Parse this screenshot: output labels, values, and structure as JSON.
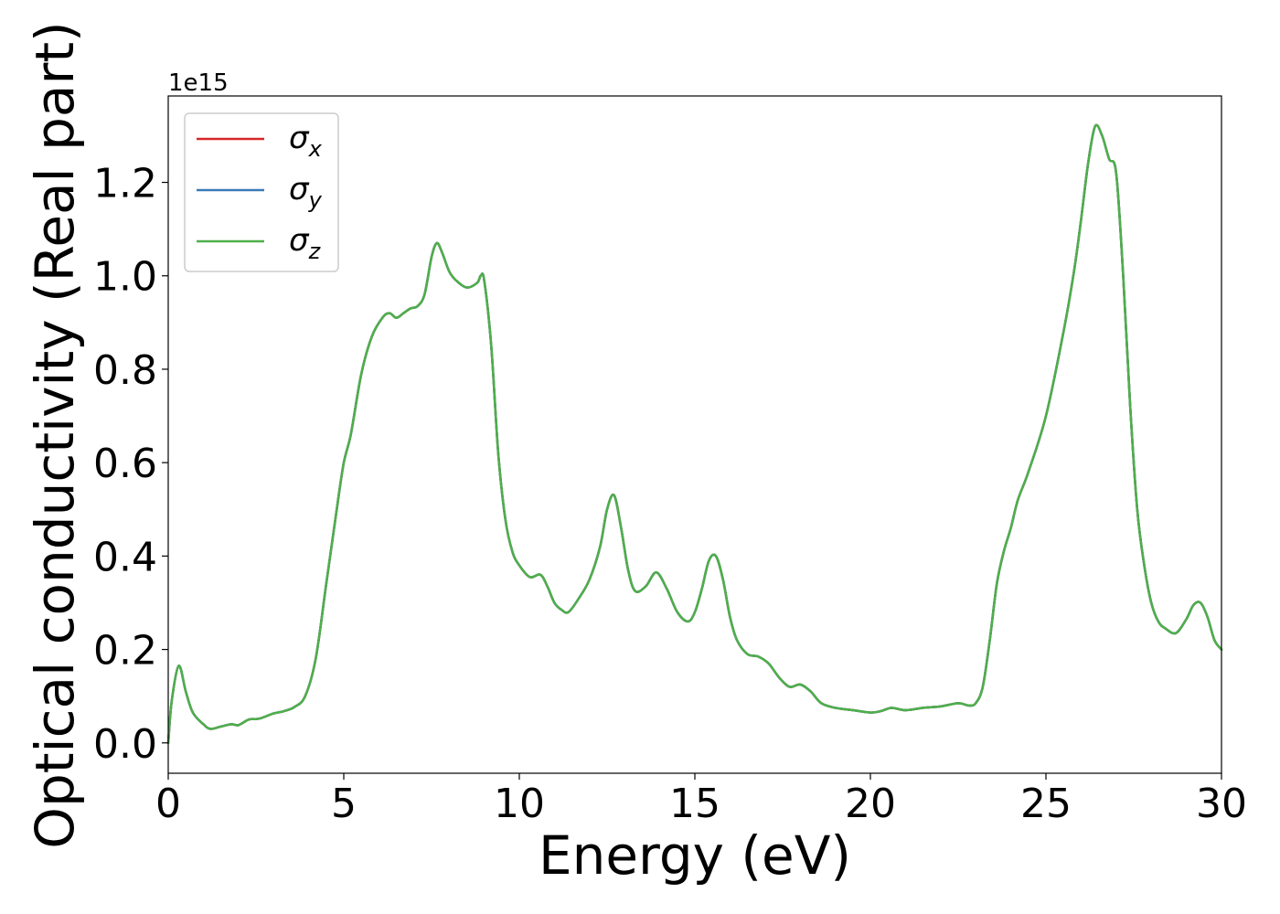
{
  "chart_data": {
    "type": "line",
    "xlabel": "Energy (eV)",
    "ylabel": "Optical conductivity (Real part)",
    "y_offset_label": "1e15",
    "xlim": [
      0,
      30
    ],
    "ylim": [
      -0.065,
      1.385
    ],
    "x_ticks": [
      0,
      5,
      10,
      15,
      20,
      25,
      30
    ],
    "x_tick_labels": [
      "0",
      "5",
      "10",
      "15",
      "20",
      "25",
      "30"
    ],
    "y_ticks": [
      0.0,
      0.2,
      0.4,
      0.6,
      0.8,
      1.0,
      1.2
    ],
    "y_tick_labels": [
      "0.0",
      "0.2",
      "0.4",
      "0.6",
      "0.8",
      "1.0",
      "1.2"
    ],
    "grid": false,
    "legend_position": "top-left",
    "x": [
      0,
      0.1,
      0.3,
      0.5,
      0.7,
      1.0,
      1.2,
      1.5,
      1.8,
      2.0,
      2.3,
      2.6,
      3.0,
      3.3,
      3.6,
      3.9,
      4.2,
      4.5,
      4.8,
      5.0,
      5.2,
      5.5,
      5.8,
      6.1,
      6.3,
      6.5,
      6.7,
      6.9,
      7.1,
      7.3,
      7.5,
      7.65,
      7.8,
      8.0,
      8.2,
      8.5,
      8.8,
      8.9,
      9.0,
      9.2,
      9.4,
      9.6,
      9.8,
      10.0,
      10.3,
      10.6,
      10.8,
      11.0,
      11.2,
      11.4,
      11.7,
      12.0,
      12.3,
      12.5,
      12.7,
      12.9,
      13.1,
      13.3,
      13.6,
      13.9,
      14.2,
      14.5,
      14.8,
      15.0,
      15.2,
      15.4,
      15.6,
      15.8,
      16.0,
      16.2,
      16.5,
      16.8,
      17.1,
      17.4,
      17.7,
      18.0,
      18.3,
      18.6,
      19.0,
      19.5,
      20.0,
      20.3,
      20.6,
      21.0,
      21.5,
      22.0,
      22.5,
      22.8,
      23.0,
      23.2,
      23.4,
      23.6,
      23.8,
      24.0,
      24.2,
      24.5,
      25.0,
      25.5,
      25.8,
      26.0,
      26.2,
      26.4,
      26.6,
      26.8,
      27.0,
      27.2,
      27.4,
      27.6,
      27.8,
      28.0,
      28.2,
      28.4,
      28.7,
      29.0,
      29.2,
      29.4,
      29.6,
      29.8,
      30.0
    ],
    "series": [
      {
        "name": "σx",
        "symbol": "σ",
        "sub": "x",
        "color": "#d62728",
        "values": [
          0.0,
          0.09,
          0.165,
          0.11,
          0.065,
          0.04,
          0.03,
          0.035,
          0.04,
          0.038,
          0.05,
          0.052,
          0.063,
          0.068,
          0.077,
          0.1,
          0.18,
          0.34,
          0.5,
          0.6,
          0.66,
          0.79,
          0.87,
          0.91,
          0.92,
          0.91,
          0.92,
          0.93,
          0.935,
          0.96,
          1.04,
          1.07,
          1.05,
          1.01,
          0.99,
          0.975,
          0.985,
          1.0,
          0.99,
          0.85,
          0.62,
          0.48,
          0.41,
          0.38,
          0.355,
          0.36,
          0.335,
          0.3,
          0.285,
          0.28,
          0.31,
          0.35,
          0.42,
          0.5,
          0.53,
          0.46,
          0.37,
          0.325,
          0.335,
          0.365,
          0.33,
          0.28,
          0.26,
          0.28,
          0.33,
          0.39,
          0.4,
          0.35,
          0.27,
          0.22,
          0.19,
          0.185,
          0.17,
          0.14,
          0.12,
          0.125,
          0.11,
          0.085,
          0.075,
          0.07,
          0.065,
          0.068,
          0.075,
          0.07,
          0.075,
          0.078,
          0.085,
          0.08,
          0.085,
          0.12,
          0.22,
          0.34,
          0.41,
          0.46,
          0.52,
          0.58,
          0.7,
          0.88,
          1.01,
          1.12,
          1.24,
          1.32,
          1.3,
          1.25,
          1.22,
          1.0,
          0.72,
          0.5,
          0.38,
          0.3,
          0.26,
          0.245,
          0.235,
          0.265,
          0.295,
          0.3,
          0.27,
          0.22,
          0.2
        ]
      },
      {
        "name": "σy",
        "symbol": "σ",
        "sub": "y",
        "color": "#3a7ab8",
        "values": [
          0.0,
          0.09,
          0.165,
          0.11,
          0.065,
          0.04,
          0.03,
          0.035,
          0.04,
          0.038,
          0.05,
          0.052,
          0.063,
          0.068,
          0.077,
          0.1,
          0.18,
          0.34,
          0.5,
          0.6,
          0.66,
          0.79,
          0.87,
          0.91,
          0.92,
          0.91,
          0.92,
          0.93,
          0.935,
          0.96,
          1.04,
          1.07,
          1.05,
          1.01,
          0.99,
          0.975,
          0.985,
          1.0,
          0.99,
          0.85,
          0.62,
          0.48,
          0.41,
          0.38,
          0.355,
          0.36,
          0.335,
          0.3,
          0.285,
          0.28,
          0.31,
          0.35,
          0.42,
          0.5,
          0.53,
          0.46,
          0.37,
          0.325,
          0.335,
          0.365,
          0.33,
          0.28,
          0.26,
          0.28,
          0.33,
          0.39,
          0.4,
          0.35,
          0.27,
          0.22,
          0.19,
          0.185,
          0.17,
          0.14,
          0.12,
          0.125,
          0.11,
          0.085,
          0.075,
          0.07,
          0.065,
          0.068,
          0.075,
          0.07,
          0.075,
          0.078,
          0.085,
          0.08,
          0.085,
          0.12,
          0.22,
          0.34,
          0.41,
          0.46,
          0.52,
          0.58,
          0.7,
          0.88,
          1.01,
          1.12,
          1.24,
          1.32,
          1.3,
          1.25,
          1.22,
          1.0,
          0.72,
          0.5,
          0.38,
          0.3,
          0.26,
          0.245,
          0.235,
          0.265,
          0.295,
          0.3,
          0.27,
          0.22,
          0.2
        ]
      },
      {
        "name": "σz",
        "symbol": "σ",
        "sub": "z",
        "color": "#4daf4a",
        "values": [
          0.0,
          0.09,
          0.165,
          0.11,
          0.065,
          0.04,
          0.03,
          0.035,
          0.04,
          0.038,
          0.05,
          0.052,
          0.063,
          0.068,
          0.077,
          0.1,
          0.18,
          0.34,
          0.5,
          0.6,
          0.66,
          0.79,
          0.87,
          0.91,
          0.92,
          0.91,
          0.92,
          0.93,
          0.935,
          0.96,
          1.04,
          1.07,
          1.05,
          1.01,
          0.99,
          0.975,
          0.985,
          1.0,
          0.99,
          0.85,
          0.62,
          0.48,
          0.41,
          0.38,
          0.355,
          0.36,
          0.335,
          0.3,
          0.285,
          0.28,
          0.31,
          0.35,
          0.42,
          0.5,
          0.53,
          0.46,
          0.37,
          0.325,
          0.335,
          0.365,
          0.33,
          0.28,
          0.26,
          0.28,
          0.33,
          0.39,
          0.4,
          0.35,
          0.27,
          0.22,
          0.19,
          0.185,
          0.17,
          0.14,
          0.12,
          0.125,
          0.11,
          0.085,
          0.075,
          0.07,
          0.065,
          0.068,
          0.075,
          0.07,
          0.075,
          0.078,
          0.085,
          0.08,
          0.085,
          0.12,
          0.22,
          0.34,
          0.41,
          0.46,
          0.52,
          0.58,
          0.7,
          0.88,
          1.01,
          1.12,
          1.24,
          1.32,
          1.3,
          1.25,
          1.22,
          1.0,
          0.72,
          0.5,
          0.38,
          0.3,
          0.26,
          0.245,
          0.235,
          0.265,
          0.295,
          0.3,
          0.27,
          0.22,
          0.2
        ]
      }
    ]
  }
}
